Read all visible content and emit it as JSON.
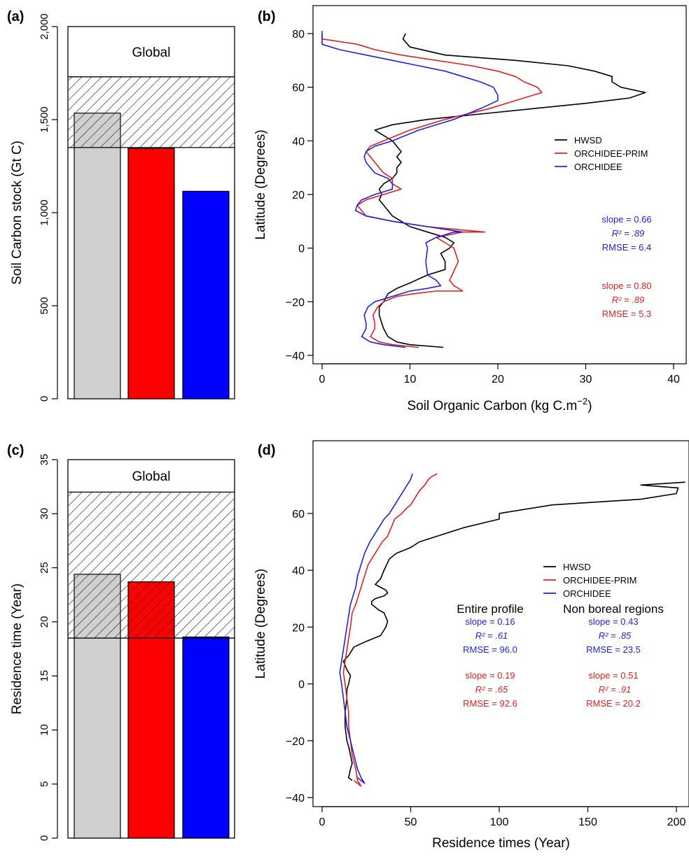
{
  "colors": {
    "hwsd": "#000000",
    "prim": "#e02020",
    "orchidee": "#2020e0",
    "obs_bar": "#d0d0d0",
    "prim_bar": "#ff0000",
    "orchidee_bar": "#0000ff"
  },
  "chart_data": [
    {
      "panel": "(a)",
      "type": "bar",
      "ylabel": "Soil Carbon stock (Gt C)",
      "ylim": [
        0,
        2000
      ],
      "yticks": [
        0,
        500,
        1000,
        1500,
        2000
      ],
      "ytick_labels": [
        "0",
        "500",
        "1,000",
        "1,500",
        "2,000"
      ],
      "box_label": "Global",
      "hatched_range": [
        1350,
        1730
      ],
      "categories": [
        "HWSD",
        "ORCHIDEE-PRIM",
        "ORCHIDEE"
      ],
      "values": [
        1535,
        1345,
        1115
      ]
    },
    {
      "panel": "(b)",
      "type": "line",
      "xlabel": "Soil Organic Carbon (kg C.m",
      "xlabel_sup": "−2",
      "xlabel_end": ")",
      "ylabel": "Latitude (Degrees)",
      "xlim": [
        0,
        40
      ],
      "ylim": [
        -40,
        80
      ],
      "xticks": [
        0,
        10,
        20,
        30,
        40
      ],
      "yticks": [
        -40,
        -20,
        0,
        20,
        40,
        60,
        80
      ],
      "legend": [
        "HWSD",
        "ORCHIDEE-PRIM",
        "ORCHIDEE"
      ],
      "legend_position": "right",
      "series": [
        {
          "name": "HWSD",
          "x": [
            13.8,
            10,
            8.5,
            7.5,
            7,
            6.8,
            6.5,
            6.5,
            7,
            7.5,
            8.5,
            10,
            12,
            14,
            14,
            13.5,
            14.5,
            15,
            14,
            12,
            10,
            9,
            8,
            7.5,
            7,
            6.5,
            6.8,
            6.5,
            7,
            8,
            8.5,
            8.5,
            9,
            8.5,
            9,
            8.5,
            8,
            7,
            6,
            8,
            12,
            18,
            24,
            30,
            35,
            36.8,
            34,
            33,
            33,
            31,
            28,
            22,
            14,
            10,
            9.2,
            9.5
          ],
          "y": [
            -37,
            -36,
            -35,
            -33,
            -30,
            -28,
            -25,
            -22,
            -20,
            -17,
            -15,
            -13,
            -10,
            -8,
            -5,
            -2,
            0,
            2,
            4,
            6,
            8,
            10,
            12,
            14,
            16,
            18,
            20,
            22,
            24,
            26,
            28,
            30,
            32,
            34,
            36,
            38,
            40,
            42,
            44,
            46,
            48,
            50,
            52,
            54,
            56,
            58,
            60,
            62,
            64,
            66,
            68,
            70,
            72,
            75,
            78,
            80
          ]
        },
        {
          "name": "ORCHIDEE-PRIM",
          "x": [
            11,
            8,
            6.5,
            5.5,
            6,
            6,
            5.8,
            6.3,
            7,
            8.5,
            10.5,
            13,
            16,
            15,
            14.5,
            14.8,
            15.5,
            15,
            14,
            13,
            16,
            18.5,
            12,
            8,
            5,
            4.5,
            4,
            5,
            7,
            9,
            8,
            8,
            7,
            6.5,
            6,
            5.5,
            5,
            5.5,
            7,
            10,
            14,
            19,
            23,
            25,
            24.5,
            23,
            22,
            20,
            17,
            13,
            9,
            6,
            4,
            0,
            0
          ],
          "y": [
            -37,
            -36,
            -35,
            -33,
            -30,
            -28,
            -25,
            -22,
            -20,
            -18,
            -17,
            -16,
            -16,
            -14,
            -12,
            -10,
            -5,
            0,
            2,
            4,
            6,
            6,
            8,
            10,
            12,
            14,
            16,
            18,
            20,
            22,
            24,
            26,
            28,
            30,
            32,
            34,
            36,
            38,
            40,
            44,
            48,
            52,
            56,
            58,
            60,
            62,
            64,
            66,
            68,
            70,
            72,
            74,
            76,
            78,
            80
          ]
        },
        {
          "name": "ORCHIDEE",
          "x": [
            9.5,
            7,
            5.5,
            4.5,
            5,
            5,
            4.8,
            5.2,
            6,
            8,
            10,
            12,
            13.5,
            13,
            12,
            11.8,
            12,
            11.8,
            13,
            15,
            16,
            12,
            8,
            5,
            3.8,
            4,
            4.5,
            6,
            8,
            8,
            7.5,
            6,
            5.5,
            5,
            4.8,
            5,
            6,
            8,
            11,
            15,
            18,
            20,
            20,
            19.5,
            18,
            16,
            14,
            11,
            8,
            5,
            2,
            0,
            0
          ],
          "y": [
            -37,
            -36,
            -35,
            -33,
            -30,
            -28,
            -25,
            -22,
            -20,
            -18,
            -16,
            -15,
            -14,
            -12,
            -10,
            -5,
            0,
            2,
            4,
            6,
            6,
            8,
            10,
            12,
            14,
            16,
            18,
            20,
            22,
            24,
            26,
            28,
            30,
            32,
            34,
            36,
            38,
            40,
            44,
            48,
            52,
            55,
            57,
            60,
            62,
            64,
            66,
            68,
            70,
            72,
            74,
            76,
            81
          ]
        }
      ],
      "annotations": [
        {
          "lines": [
            "slope = 0.66",
            "R² = .89",
            "RMSE = 6.4"
          ],
          "color": "#2020e0"
        },
        {
          "lines": [
            "slope = 0.80",
            "R² = .89",
            "RMSE = 5.3"
          ],
          "color": "#e02020"
        }
      ]
    },
    {
      "panel": "(c)",
      "type": "bar",
      "ylabel": "Residence time (Year)",
      "ylim": [
        0,
        35
      ],
      "yticks": [
        0,
        5,
        10,
        15,
        20,
        25,
        30,
        35
      ],
      "ytick_labels": [
        "0",
        "5",
        "10",
        "15",
        "20",
        "25",
        "30",
        "35"
      ],
      "box_label": "Global",
      "hatched_range": [
        18.5,
        32
      ],
      "categories": [
        "HWSD",
        "ORCHIDEE-PRIM",
        "ORCHIDEE"
      ],
      "values": [
        24.4,
        23.7,
        18.6
      ]
    },
    {
      "panel": "(d)",
      "type": "line",
      "xlabel": "Residence times (Year)",
      "ylabel": "Latitude (Degrees)",
      "xlim": [
        0,
        200
      ],
      "ylim": [
        -40,
        75
      ],
      "xticks": [
        0,
        50,
        100,
        150,
        200
      ],
      "yticks": [
        -40,
        -20,
        0,
        20,
        40,
        60
      ],
      "legend": [
        "HWSD",
        "ORCHIDEE-PRIM",
        "ORCHIDEE"
      ],
      "legend_position": "right",
      "series": [
        {
          "name": "HWSD",
          "x": [
            17,
            15,
            16,
            17,
            16,
            15,
            14,
            13,
            13,
            14,
            14,
            15,
            16,
            14,
            12,
            15,
            18,
            25,
            33,
            36,
            37,
            35,
            32,
            30,
            28,
            28,
            30,
            35,
            37,
            36,
            33,
            30,
            33,
            35,
            38,
            42,
            50,
            55,
            65,
            80,
            100,
            100,
            130,
            180,
            200,
            201,
            180,
            205
          ],
          "y": [
            -34,
            -33,
            -30,
            -28,
            -25,
            -22,
            -20,
            -15,
            -10,
            -5,
            -2,
            0,
            3,
            5,
            8,
            10,
            13,
            15,
            17,
            20,
            22,
            25,
            26,
            27,
            28,
            29,
            30,
            31,
            32,
            33,
            34,
            35,
            37,
            40,
            44,
            46,
            48,
            50,
            52,
            55,
            58,
            60,
            63,
            65,
            67,
            69,
            70,
            71
          ]
        },
        {
          "name": "ORCHIDEE-PRIM",
          "x": [
            18,
            22,
            20,
            19,
            17,
            16,
            15,
            15,
            14,
            13,
            12,
            13,
            14,
            15,
            16,
            17,
            19,
            20,
            21,
            22,
            24,
            26,
            30,
            34,
            37,
            39,
            41,
            45,
            48,
            50,
            52,
            55,
            58,
            60,
            62,
            65
          ],
          "y": [
            -34,
            -36,
            -34,
            -30,
            -25,
            -20,
            -15,
            -10,
            -5,
            0,
            4,
            8,
            12,
            16,
            20,
            25,
            28,
            30,
            32,
            34,
            38,
            42,
            46,
            50,
            52,
            55,
            58,
            60,
            62,
            63,
            65,
            68,
            70,
            72,
            73,
            74
          ]
        },
        {
          "name": "ORCHIDEE",
          "x": [
            20,
            24,
            22,
            20,
            18,
            16,
            14,
            13,
            12,
            11,
            10,
            11,
            12,
            13,
            14,
            15,
            16,
            17,
            18,
            19,
            20,
            22,
            24,
            27,
            30,
            33,
            35,
            38,
            40,
            42,
            44,
            46,
            48,
            50,
            51
          ],
          "y": [
            -33,
            -35,
            -33,
            -30,
            -25,
            -20,
            -15,
            -10,
            -5,
            0,
            4,
            8,
            12,
            16,
            20,
            24,
            28,
            30,
            32,
            34,
            38,
            42,
            46,
            50,
            53,
            56,
            58,
            60,
            62,
            64,
            66,
            68,
            70,
            72,
            74
          ]
        }
      ],
      "annotation_headers": [
        "Entire profile",
        "Non boreal regions"
      ],
      "annotations": [
        {
          "lines": [
            "slope = 0.16",
            "R² = .61",
            "RMSE = 96.0"
          ],
          "color": "#2020e0",
          "column": 0
        },
        {
          "lines": [
            "slope = 0.43",
            "R² = .85",
            "RMSE = 23.5"
          ],
          "color": "#2020e0",
          "column": 1
        },
        {
          "lines": [
            "slope = 0.19",
            "R² = .65",
            "RMSE = 92.6"
          ],
          "color": "#e02020",
          "column": 0
        },
        {
          "lines": [
            "slope = 0.51",
            "R² = .91",
            "RMSE = 20.2"
          ],
          "color": "#e02020",
          "column": 1
        }
      ]
    }
  ]
}
